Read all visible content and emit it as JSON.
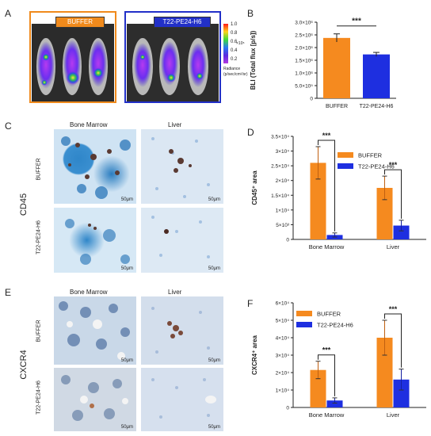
{
  "panel_labels": [
    "A",
    "B",
    "C",
    "D",
    "E",
    "F"
  ],
  "panel_a": {
    "buffer_label": "BUFFER",
    "treated_label": "T22-PE24-H6",
    "colorbar": {
      "ticks": [
        "1.0",
        "0.8",
        "0.6",
        "0.4",
        "0.2"
      ],
      "exp": "×10⁵",
      "title_1": "Radiance",
      "title_2": "(p/sec/cm²/sr)"
    },
    "colors": {
      "buffer": "#f08a1c",
      "treated": "#2230c8"
    }
  },
  "row_labels": {
    "bone_marrow": "Bone Marrow",
    "liver": "Liver",
    "buffer": "BUFFER",
    "treated": "T22-PE24-H6",
    "cd45": "CD45",
    "cxcr4": "CXCR4",
    "scale": "50μm"
  },
  "chart_data": [
    {
      "panel": "B",
      "type": "bar",
      "categories": [
        "BUFFER",
        "T22-PE24-H6"
      ],
      "values": [
        2380000,
        1730000
      ],
      "errors": [
        160000,
        80000
      ],
      "colors": [
        "#f58a1f",
        "#1e2fe0"
      ],
      "ylabel": "BLI (Total flux [p/s])",
      "ylim": [
        0,
        3000000
      ],
      "yticks": [
        0,
        500000,
        1000000,
        1500000,
        2000000,
        2500000,
        3000000
      ],
      "ytick_labels": [
        "0",
        "5.0×10⁵",
        "1.0×10⁶",
        "1.5×10⁶",
        "2.0×10⁶",
        "2.5×10⁶",
        "3.0×10⁶"
      ],
      "significance": "***"
    },
    {
      "panel": "D",
      "type": "bar",
      "categories": [
        "Bone Marrow",
        "Liver"
      ],
      "series": [
        {
          "name": "BUFFER",
          "values": [
            26000,
            17500
          ],
          "errors": [
            5500,
            4000
          ],
          "color": "#f58a1f"
        },
        {
          "name": "T22-PE24-H6",
          "values": [
            1500,
            4700
          ],
          "errors": [
            700,
            1800
          ],
          "color": "#1e2fe0"
        }
      ],
      "ylabel": "CD45⁺ area",
      "ylim": [
        0,
        35000
      ],
      "yticks": [
        0,
        5000,
        10000,
        15000,
        20000,
        25000,
        30000,
        35000
      ],
      "ytick_labels": [
        "0",
        "5×10³",
        "1×10⁴",
        "1.5×10⁴",
        "2×10⁴",
        "2.5×10⁴",
        "3×10⁴",
        "3.5×10⁴"
      ],
      "significance": [
        "***",
        "***"
      ],
      "legend": "top-right"
    },
    {
      "panel": "F",
      "type": "bar",
      "categories": [
        "Bone Marrow",
        "Liver"
      ],
      "series": [
        {
          "name": "BUFFER",
          "values": [
            21500,
            40000
          ],
          "errors": [
            5000,
            10000
          ],
          "color": "#f58a1f"
        },
        {
          "name": "T22-PE24-H6",
          "values": [
            4000,
            16000
          ],
          "errors": [
            1500,
            6000
          ],
          "color": "#1e2fe0"
        }
      ],
      "ylabel": "CXCR4⁺ area",
      "ylim": [
        0,
        60000
      ],
      "yticks": [
        0,
        10000,
        20000,
        30000,
        40000,
        50000,
        60000
      ],
      "ytick_labels": [
        "0",
        "1×10⁴",
        "2×10⁴",
        "3×10⁴",
        "4×10⁴",
        "5×10⁴",
        "6×10⁴"
      ],
      "significance": [
        "***",
        "***"
      ],
      "legend": "top-left"
    }
  ]
}
